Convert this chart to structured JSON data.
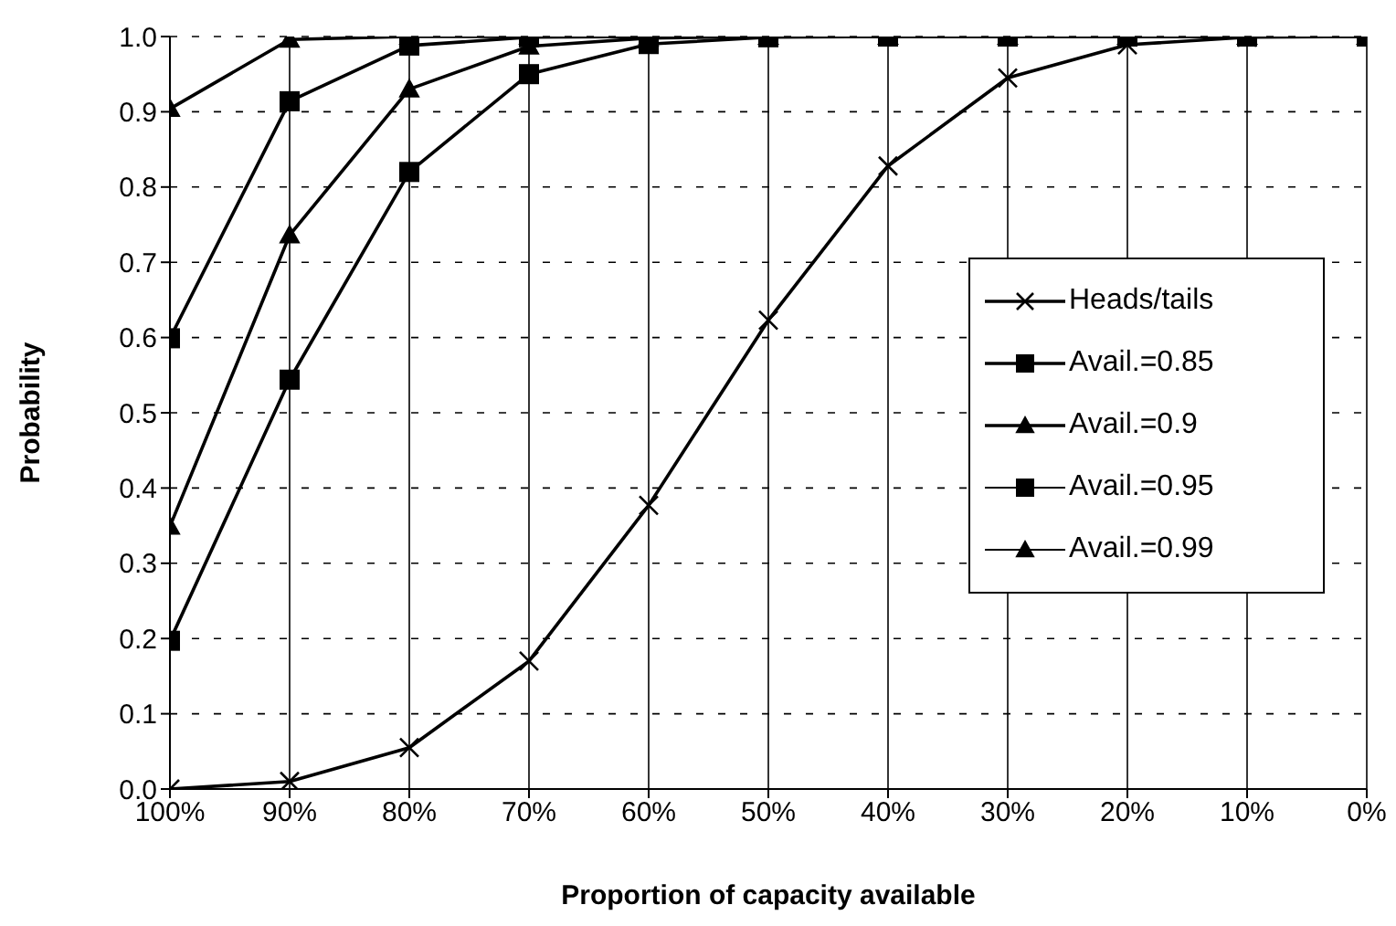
{
  "chart_data": {
    "type": "line",
    "xlabel": "Proportion of capacity available",
    "ylabel": "Probability",
    "categories": [
      "100%",
      "90%",
      "80%",
      "70%",
      "60%",
      "50%",
      "40%",
      "30%",
      "20%",
      "10%",
      "0%"
    ],
    "series": [
      {
        "name": "Heads/tails",
        "color": "#000000",
        "marker": "cross",
        "values": [
          0.0,
          0.01,
          0.055,
          0.17,
          0.377,
          0.623,
          0.828,
          0.945,
          0.989,
          0.999,
          1.0
        ]
      },
      {
        "name": "Avail.=0.85",
        "color": "#000000",
        "marker": "square",
        "values": [
          0.197,
          0.544,
          0.82,
          0.95,
          0.99,
          0.999,
          1.0,
          1.0,
          1.0,
          1.0,
          1.0
        ]
      },
      {
        "name": "Avail.=0.9",
        "color": "#000000",
        "marker": "triangle",
        "values": [
          0.349,
          0.736,
          0.93,
          0.987,
          0.998,
          1.0,
          1.0,
          1.0,
          1.0,
          1.0,
          1.0
        ]
      },
      {
        "name": "Avail.=0.95",
        "color": "#000000",
        "marker": "square",
        "values": [
          0.599,
          0.914,
          0.988,
          0.999,
          1.0,
          1.0,
          1.0,
          1.0,
          1.0,
          1.0,
          1.0
        ]
      },
      {
        "name": "Avail.=0.99",
        "color": "#000000",
        "marker": "triangle",
        "values": [
          0.904,
          0.996,
          1.0,
          1.0,
          1.0,
          1.0,
          1.0,
          1.0,
          1.0,
          1.0,
          1.0
        ]
      }
    ],
    "ylim": [
      0,
      1
    ],
    "yticks": [
      {
        "value": 0,
        "label": "0.0"
      },
      0.1,
      0.2,
      0.3,
      0.4,
      0.5,
      0.6,
      0.7,
      0.8,
      0.9,
      {
        "value": 1,
        "label": "1.0"
      }
    ],
    "grid": true,
    "legend": "right",
    "line_style": "solid"
  }
}
